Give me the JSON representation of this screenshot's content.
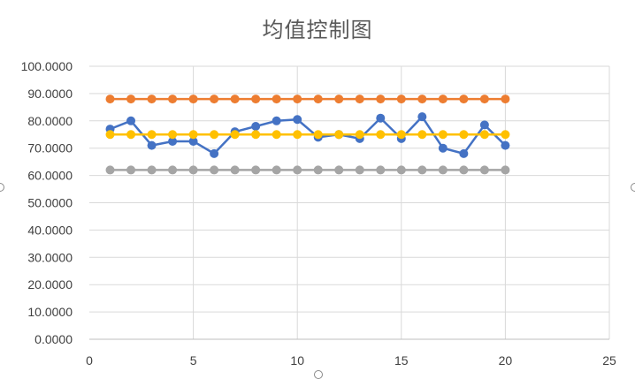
{
  "chart_data": {
    "type": "scatter",
    "title": "均值控制图",
    "xlabel": "",
    "ylabel": "",
    "xlim": [
      0,
      25
    ],
    "ylim": [
      0,
      100
    ],
    "x_ticks": [
      0,
      5,
      10,
      15,
      20,
      25
    ],
    "y_ticks": [
      0,
      10,
      20,
      30,
      40,
      50,
      60,
      70,
      80,
      90,
      100
    ],
    "y_tick_decimals": 4,
    "grid": true,
    "legend": "none",
    "series": [
      {
        "color": "#4472C4",
        "x": [
          1,
          2,
          3,
          4,
          5,
          6,
          7,
          8,
          9,
          10,
          11,
          12,
          13,
          14,
          15,
          16,
          17,
          18,
          19,
          20
        ],
        "values": [
          77,
          80,
          71,
          72.5,
          72.5,
          68,
          76,
          78,
          80,
          80.5,
          74,
          75,
          73.5,
          81,
          73.5,
          81.5,
          70,
          68,
          78.5,
          71
        ]
      },
      {
        "color": "#ED7D31",
        "x": [
          1,
          2,
          3,
          4,
          5,
          6,
          7,
          8,
          9,
          10,
          11,
          12,
          13,
          14,
          15,
          16,
          17,
          18,
          19,
          20
        ],
        "values": [
          88,
          88,
          88,
          88,
          88,
          88,
          88,
          88,
          88,
          88,
          88,
          88,
          88,
          88,
          88,
          88,
          88,
          88,
          88,
          88
        ]
      },
      {
        "color": "#A5A5A5",
        "x": [
          1,
          2,
          3,
          4,
          5,
          6,
          7,
          8,
          9,
          10,
          11,
          12,
          13,
          14,
          15,
          16,
          17,
          18,
          19,
          20
        ],
        "values": [
          62,
          62,
          62,
          62,
          62,
          62,
          62,
          62,
          62,
          62,
          62,
          62,
          62,
          62,
          62,
          62,
          62,
          62,
          62,
          62
        ]
      },
      {
        "color": "#FFC000",
        "x": [
          1,
          2,
          3,
          4,
          5,
          6,
          7,
          8,
          9,
          10,
          11,
          12,
          13,
          14,
          15,
          16,
          17,
          18,
          19,
          20
        ],
        "values": [
          75,
          75,
          75,
          75,
          75,
          75,
          75,
          75,
          75,
          75,
          75,
          75,
          75,
          75,
          75,
          75,
          75,
          75,
          75,
          75
        ]
      }
    ]
  }
}
